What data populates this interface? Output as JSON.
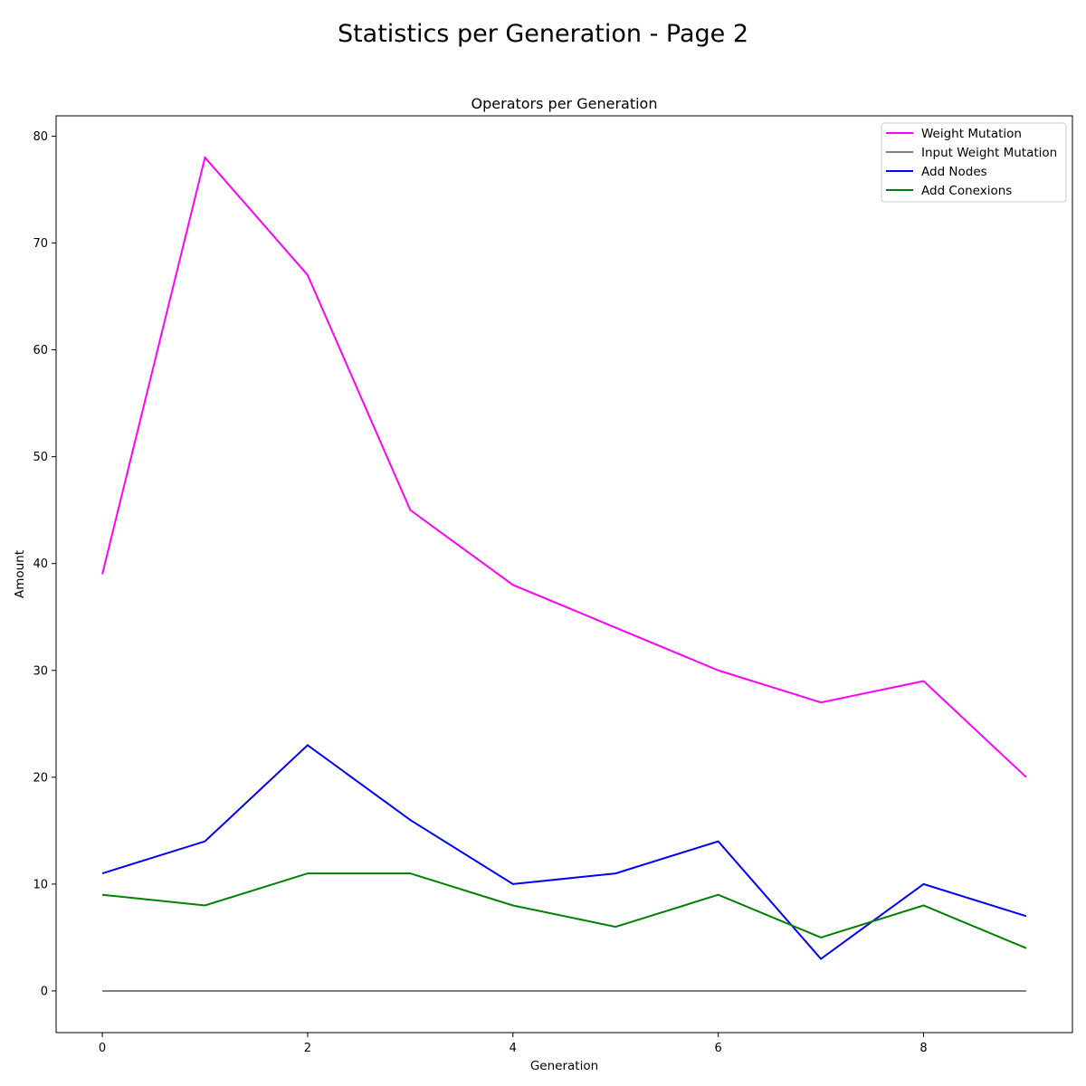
{
  "chart_data": {
    "type": "line",
    "suptitle": "Statistics per Generation - Page 2",
    "title": "Operators per Generation",
    "xlabel": "Generation",
    "ylabel": "Amount",
    "x": [
      0,
      1,
      2,
      3,
      4,
      5,
      6,
      7,
      8,
      9
    ],
    "xlim": [
      -0.45,
      9.45
    ],
    "ylim": [
      -3.9,
      81.9
    ],
    "xticks": [
      0,
      2,
      4,
      6,
      8
    ],
    "yticks": [
      0,
      10,
      20,
      30,
      40,
      50,
      60,
      70,
      80
    ],
    "grid": false,
    "legend_position": "top-right",
    "series": [
      {
        "name": "Weight Mutation",
        "color": "#ff00ff",
        "values": [
          39,
          78,
          67,
          45,
          38,
          34,
          30,
          27,
          29,
          20
        ]
      },
      {
        "name": "Input Weight Mutation",
        "color": "#808080",
        "values": [
          0,
          0,
          0,
          0,
          0,
          0,
          0,
          0,
          0,
          0
        ]
      },
      {
        "name": "Add Nodes",
        "color": "#0000ff",
        "values": [
          11,
          14,
          23,
          16,
          10,
          11,
          14,
          3,
          10,
          7
        ]
      },
      {
        "name": "Add Conexions",
        "color": "#008000",
        "values": [
          9,
          8,
          11,
          11,
          8,
          6,
          9,
          5,
          8,
          4
        ]
      }
    ]
  }
}
